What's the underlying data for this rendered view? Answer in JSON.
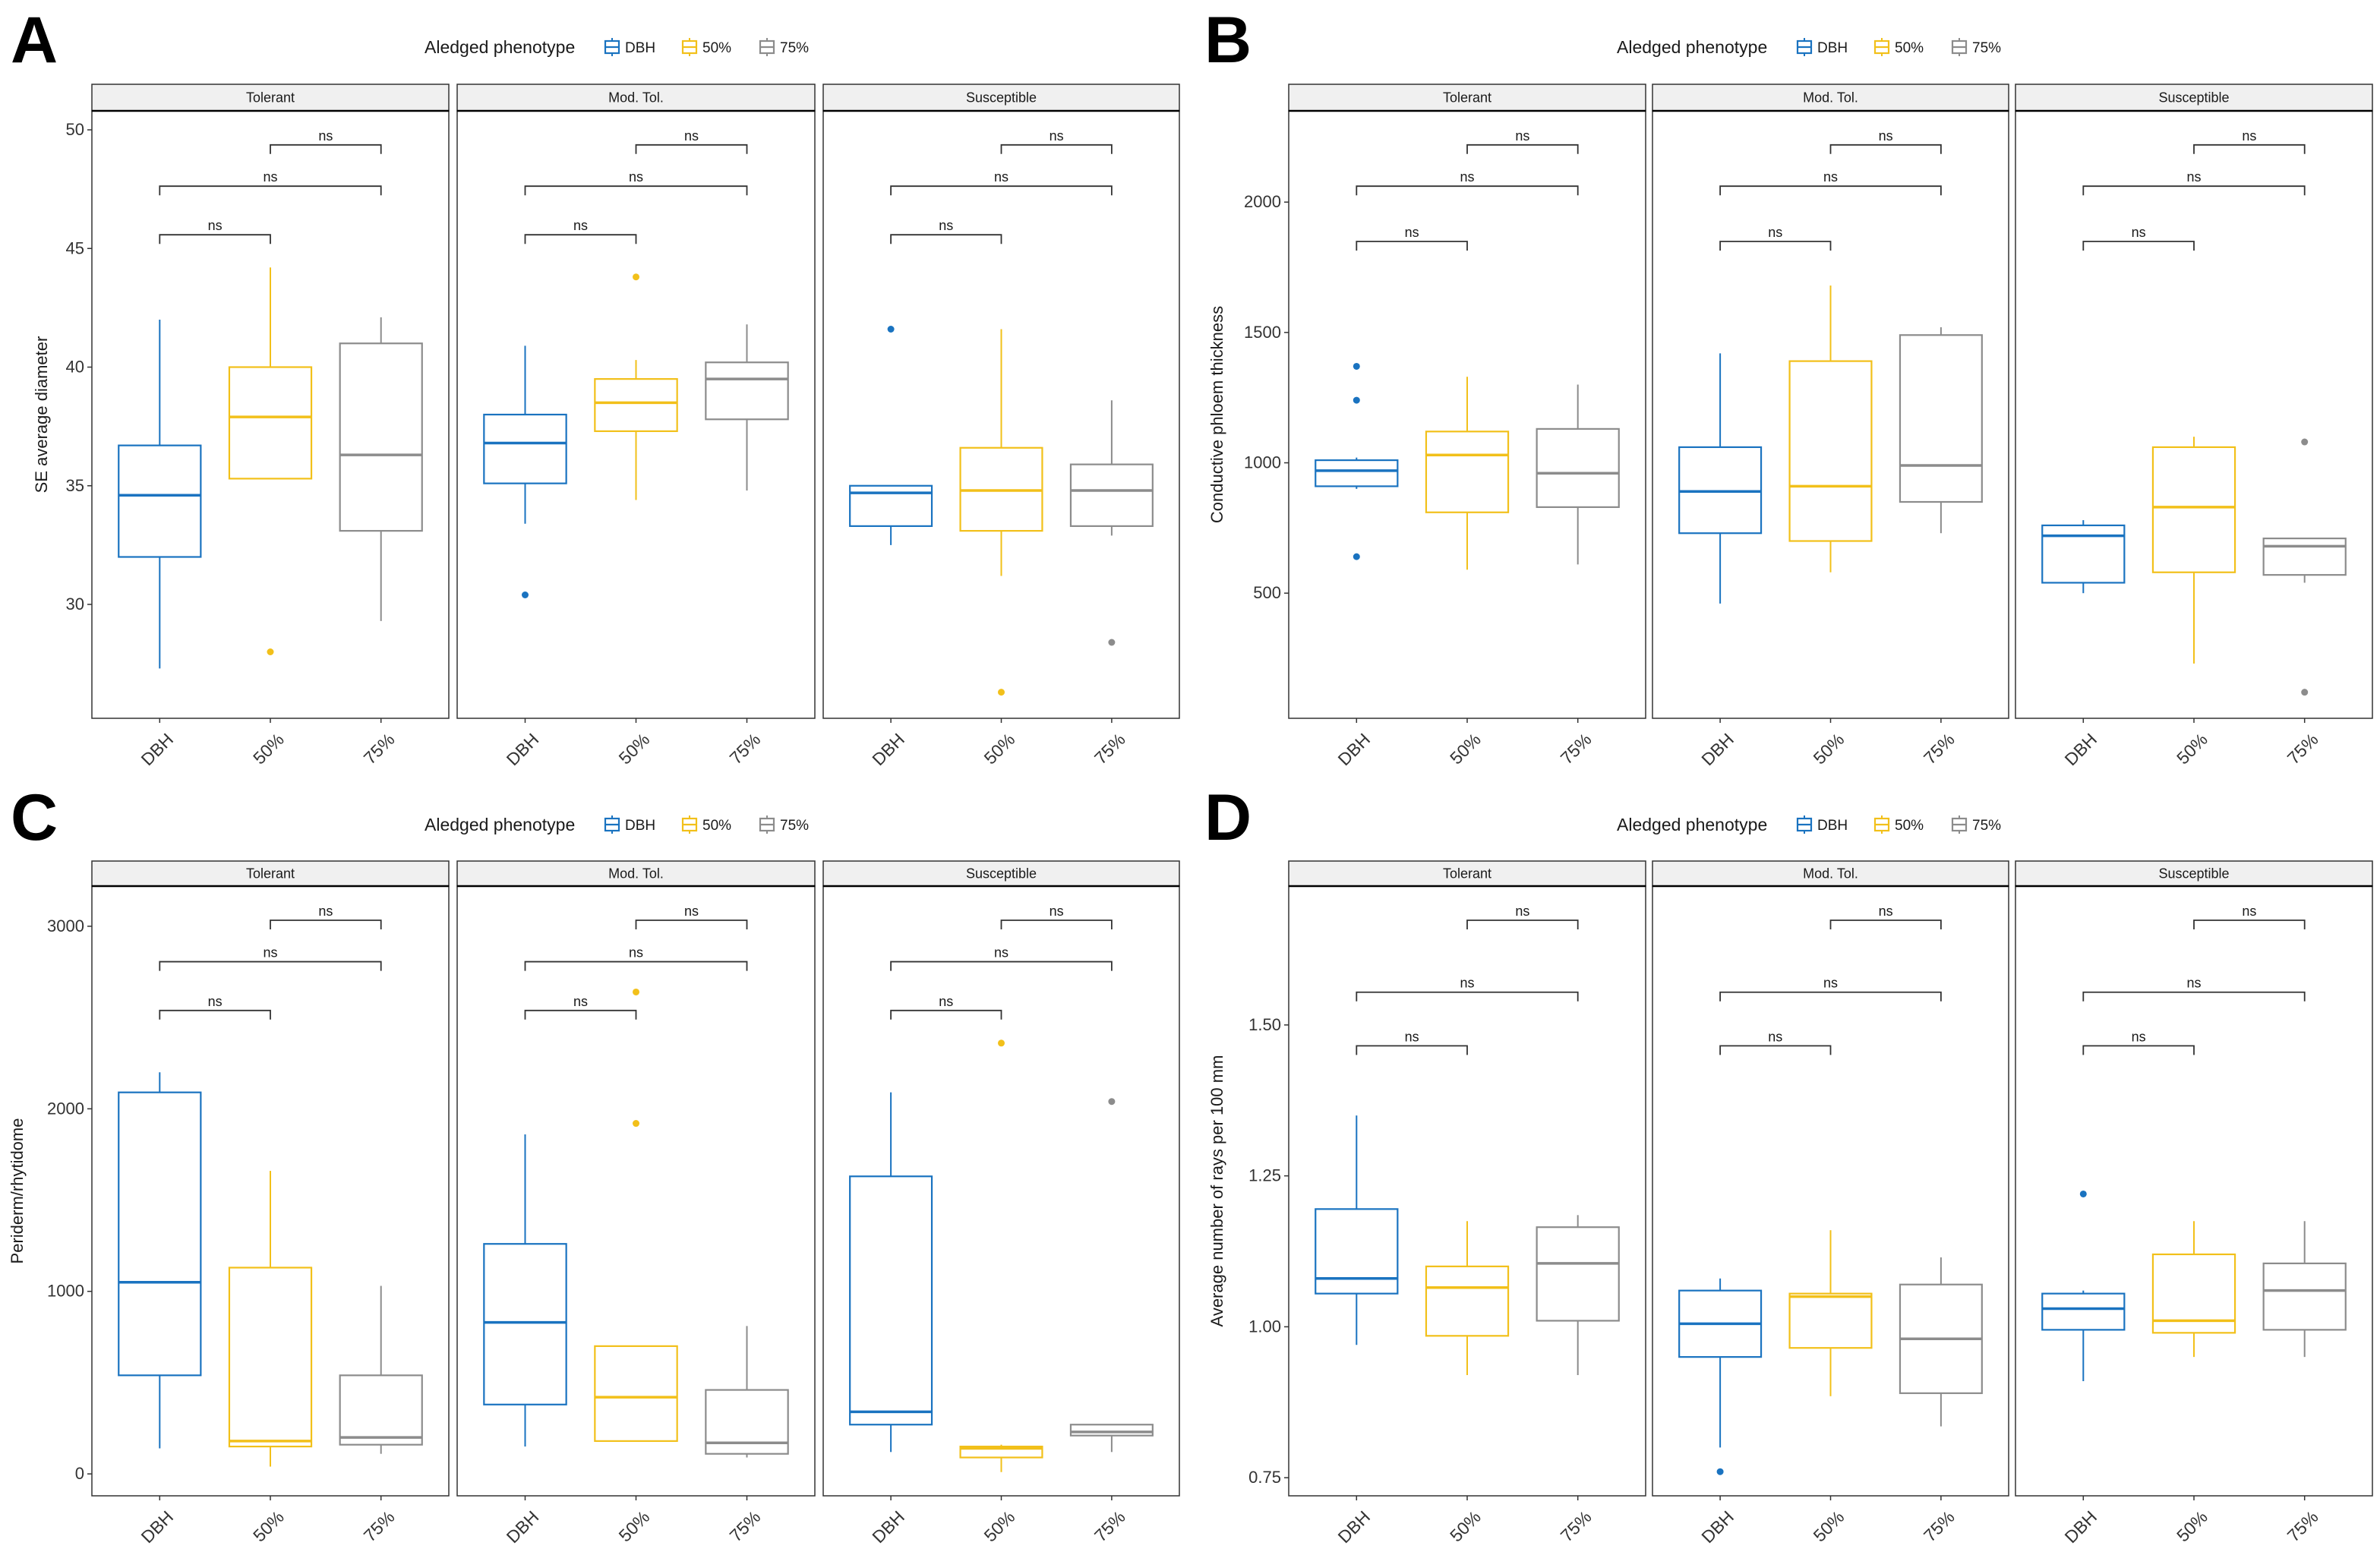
{
  "colors": {
    "DBH": "#1a73c0",
    "50%": "#f2c01a",
    "75%": "#8c8c8c"
  },
  "legend": {
    "title": "Aledged phenotype",
    "labels": [
      "DBH",
      "50%",
      "75%"
    ]
  },
  "facets": [
    "Tolerant",
    "Mod. Tol.",
    "Susceptible"
  ],
  "categories": [
    "DBH",
    "50%",
    "75%"
  ],
  "significance_label": "ns",
  "chart_data": [
    {
      "panel": "A",
      "type": "boxplot",
      "ylabel": "SE average diameter",
      "ylim": [
        25.2,
        50.8
      ],
      "yticks": [
        30,
        35,
        40,
        45,
        50
      ],
      "facets": [
        {
          "name": "Tolerant",
          "boxes": [
            {
              "group": "DBH",
              "min": 27.3,
              "q1": 32.0,
              "median": 34.6,
              "q3": 36.7,
              "max": 42.0,
              "outliers": []
            },
            {
              "group": "50%",
              "min": 35.3,
              "q1": 35.3,
              "median": 37.9,
              "q3": 40.0,
              "max": 44.2,
              "outliers": [
                28.0
              ]
            },
            {
              "group": "75%",
              "min": 29.3,
              "q1": 33.1,
              "median": 36.3,
              "q3": 41.0,
              "max": 42.1,
              "outliers": []
            }
          ]
        },
        {
          "name": "Mod. Tol.",
          "boxes": [
            {
              "group": "DBH",
              "min": 33.4,
              "q1": 35.1,
              "median": 36.8,
              "q3": 38.0,
              "max": 40.9,
              "outliers": [
                30.4
              ]
            },
            {
              "group": "50%",
              "min": 34.4,
              "q1": 37.3,
              "median": 38.5,
              "q3": 39.5,
              "max": 40.3,
              "outliers": [
                43.8
              ]
            },
            {
              "group": "75%",
              "min": 34.8,
              "q1": 37.8,
              "median": 39.5,
              "q3": 40.2,
              "max": 41.8,
              "outliers": []
            }
          ]
        },
        {
          "name": "Susceptible",
          "boxes": [
            {
              "group": "DBH",
              "min": 32.5,
              "q1": 33.3,
              "median": 34.7,
              "q3": 35.0,
              "max": 35.0,
              "outliers": [
                41.6
              ]
            },
            {
              "group": "50%",
              "min": 31.2,
              "q1": 33.1,
              "median": 34.8,
              "q3": 36.6,
              "max": 41.6,
              "outliers": [
                26.3
              ]
            },
            {
              "group": "75%",
              "min": 32.9,
              "q1": 33.3,
              "median": 34.8,
              "q3": 35.9,
              "max": 38.6,
              "outliers": [
                28.4
              ]
            }
          ]
        }
      ]
    },
    {
      "panel": "B",
      "type": "boxplot",
      "ylabel": "Conductive phloem thickness",
      "ylim": [
        20,
        2350
      ],
      "yticks": [
        500,
        1000,
        1500,
        2000
      ],
      "facets": [
        {
          "name": "Tolerant",
          "boxes": [
            {
              "group": "DBH",
              "min": 900,
              "q1": 910,
              "median": 970,
              "q3": 1010,
              "max": 1020,
              "outliers": [
                640,
                1240,
                1370
              ]
            },
            {
              "group": "50%",
              "min": 590,
              "q1": 810,
              "median": 1030,
              "q3": 1120,
              "max": 1330,
              "outliers": []
            },
            {
              "group": "75%",
              "min": 610,
              "q1": 830,
              "median": 960,
              "q3": 1130,
              "max": 1300,
              "outliers": []
            }
          ]
        },
        {
          "name": "Mod. Tol.",
          "boxes": [
            {
              "group": "DBH",
              "min": 460,
              "q1": 730,
              "median": 890,
              "q3": 1060,
              "max": 1420,
              "outliers": []
            },
            {
              "group": "50%",
              "min": 580,
              "q1": 700,
              "median": 910,
              "q3": 1390,
              "max": 1680,
              "outliers": []
            },
            {
              "group": "75%",
              "min": 730,
              "q1": 850,
              "median": 990,
              "q3": 1490,
              "max": 1520,
              "outliers": []
            }
          ]
        },
        {
          "name": "Susceptible",
          "boxes": [
            {
              "group": "DBH",
              "min": 500,
              "q1": 540,
              "median": 720,
              "q3": 760,
              "max": 780,
              "outliers": []
            },
            {
              "group": "50%",
              "min": 230,
              "q1": 580,
              "median": 830,
              "q3": 1060,
              "max": 1100,
              "outliers": []
            },
            {
              "group": "75%",
              "min": 540,
              "q1": 570,
              "median": 680,
              "q3": 710,
              "max": 710,
              "outliers": [
                120,
                1080
              ]
            }
          ]
        }
      ]
    },
    {
      "panel": "C",
      "type": "boxplot",
      "ylabel": "Periderm/rhytidome",
      "ylim": [
        -120,
        3220
      ],
      "yticks": [
        0,
        1000,
        2000,
        3000
      ],
      "facets": [
        {
          "name": "Tolerant",
          "boxes": [
            {
              "group": "DBH",
              "min": 140,
              "q1": 540,
              "median": 1050,
              "q3": 2090,
              "max": 2200,
              "outliers": []
            },
            {
              "group": "50%",
              "min": 40,
              "q1": 150,
              "median": 180,
              "q3": 1130,
              "max": 1660,
              "outliers": []
            },
            {
              "group": "75%",
              "min": 110,
              "q1": 160,
              "median": 200,
              "q3": 540,
              "max": 1030,
              "outliers": []
            }
          ]
        },
        {
          "name": "Mod. Tol.",
          "boxes": [
            {
              "group": "DBH",
              "min": 150,
              "q1": 380,
              "median": 830,
              "q3": 1260,
              "max": 1860,
              "outliers": []
            },
            {
              "group": "50%",
              "min": 180,
              "q1": 180,
              "median": 420,
              "q3": 700,
              "max": 700,
              "outliers": [
                1920,
                2640
              ]
            },
            {
              "group": "75%",
              "min": 90,
              "q1": 110,
              "median": 170,
              "q3": 460,
              "max": 810,
              "outliers": []
            }
          ]
        },
        {
          "name": "Susceptible",
          "boxes": [
            {
              "group": "DBH",
              "min": 120,
              "q1": 270,
              "median": 340,
              "q3": 1630,
              "max": 2090,
              "outliers": []
            },
            {
              "group": "50%",
              "min": 10,
              "q1": 90,
              "median": 140,
              "q3": 150,
              "max": 160,
              "outliers": [
                2360
              ]
            },
            {
              "group": "75%",
              "min": 120,
              "q1": 210,
              "median": 230,
              "q3": 270,
              "max": 270,
              "outliers": [
                2040
              ]
            }
          ]
        }
      ]
    },
    {
      "panel": "D",
      "type": "boxplot",
      "ylabel": "Average number of rays per 100 mm",
      "ylim": [
        0.72,
        1.73
      ],
      "yticks": [
        0.75,
        1.0,
        1.25,
        1.5
      ],
      "ytick_labels": [
        "0.75",
        "1.00",
        "1.25",
        "1.50"
      ],
      "facets": [
        {
          "name": "Tolerant",
          "boxes": [
            {
              "group": "DBH",
              "min": 0.97,
              "q1": 1.055,
              "median": 1.08,
              "q3": 1.195,
              "max": 1.35,
              "outliers": []
            },
            {
              "group": "50%",
              "min": 0.92,
              "q1": 0.985,
              "median": 1.065,
              "q3": 1.1,
              "max": 1.175,
              "outliers": []
            },
            {
              "group": "75%",
              "min": 0.92,
              "q1": 1.01,
              "median": 1.105,
              "q3": 1.165,
              "max": 1.185,
              "outliers": []
            }
          ]
        },
        {
          "name": "Mod. Tol.",
          "boxes": [
            {
              "group": "DBH",
              "min": 0.8,
              "q1": 0.95,
              "median": 1.005,
              "q3": 1.06,
              "max": 1.08,
              "outliers": [
                0.76
              ]
            },
            {
              "group": "50%",
              "min": 0.885,
              "q1": 0.965,
              "median": 1.05,
              "q3": 1.055,
              "max": 1.16,
              "outliers": []
            },
            {
              "group": "75%",
              "min": 0.835,
              "q1": 0.89,
              "median": 0.98,
              "q3": 1.07,
              "max": 1.115,
              "outliers": []
            }
          ]
        },
        {
          "name": "Susceptible",
          "boxes": [
            {
              "group": "DBH",
              "min": 0.91,
              "q1": 0.995,
              "median": 1.03,
              "q3": 1.055,
              "max": 1.06,
              "outliers": [
                1.22
              ]
            },
            {
              "group": "50%",
              "min": 0.95,
              "q1": 0.99,
              "median": 1.01,
              "q3": 1.12,
              "max": 1.175,
              "outliers": []
            },
            {
              "group": "75%",
              "min": 0.95,
              "q1": 0.995,
              "median": 1.06,
              "q3": 1.105,
              "max": 1.175,
              "outliers": []
            }
          ]
        }
      ]
    }
  ]
}
